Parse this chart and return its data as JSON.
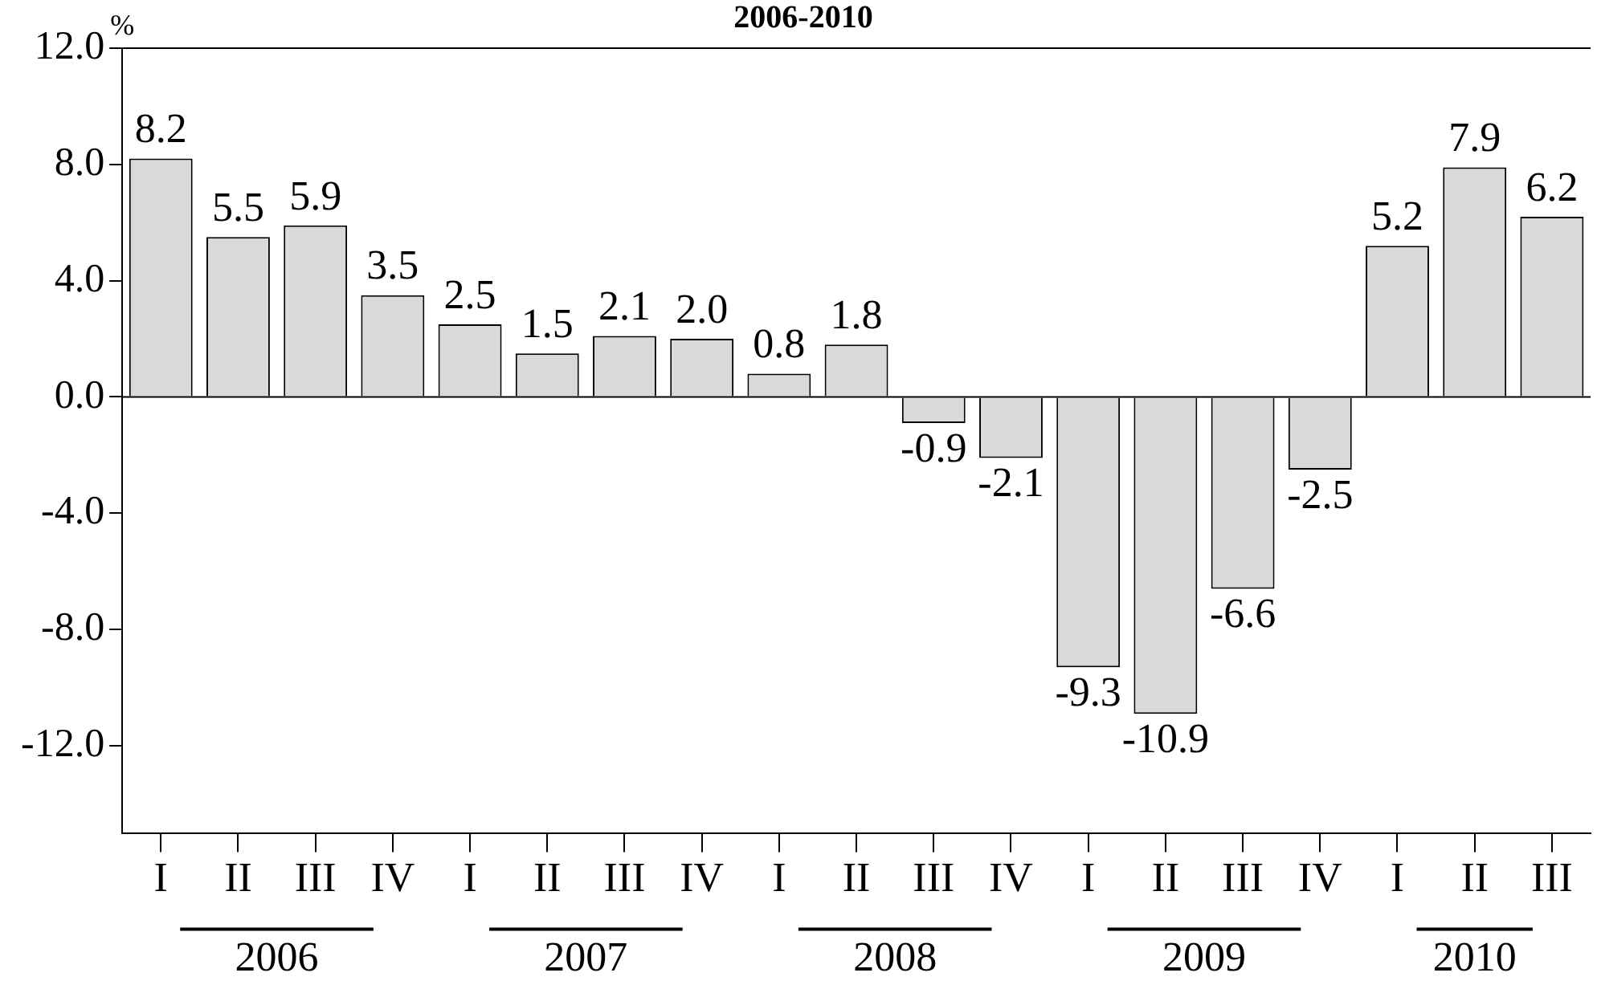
{
  "chart_data": {
    "type": "bar",
    "title": "2006-2010",
    "ylabel": "%",
    "categories": [
      "I",
      "II",
      "III",
      "IV",
      "I",
      "II",
      "III",
      "IV",
      "I",
      "II",
      "III",
      "IV",
      "I",
      "II",
      "III",
      "IV",
      "I",
      "II",
      "III"
    ],
    "values": [
      8.2,
      5.5,
      5.9,
      3.5,
      2.5,
      1.5,
      2.1,
      2.0,
      0.8,
      1.8,
      -0.9,
      -2.1,
      -9.3,
      -10.9,
      -6.6,
      -2.5,
      5.2,
      7.9,
      6.2
    ],
    "value_labels": [
      "8.2",
      "5.5",
      "5.9",
      "3.5",
      "2.5",
      "1.5",
      "2.1",
      "2.0",
      "0.8",
      "1.8",
      "-0.9",
      "-2.1",
      "-9.3",
      "-10.9",
      "-6.6",
      "-2.5",
      "5.2",
      "7.9",
      "6.2"
    ],
    "color": "#d9d9d9",
    "ylim": [
      -15,
      12
    ],
    "ref_lines": [
      {
        "axis": "y",
        "value": 0
      }
    ],
    "yticks": [
      {
        "value": 12,
        "label": "12.0"
      },
      {
        "value": 8,
        "label": "8.0"
      },
      {
        "value": 4,
        "label": "4.0"
      },
      {
        "value": 0,
        "label": "0.0"
      },
      {
        "value": -4,
        "label": "-4.0"
      },
      {
        "value": -8,
        "label": "-8.0"
      },
      {
        "value": -12,
        "label": "-12.0"
      }
    ],
    "annotations": [
      "2006",
      "2007",
      "2008",
      "2009",
      "2010"
    ],
    "grid": false,
    "legend": false
  }
}
